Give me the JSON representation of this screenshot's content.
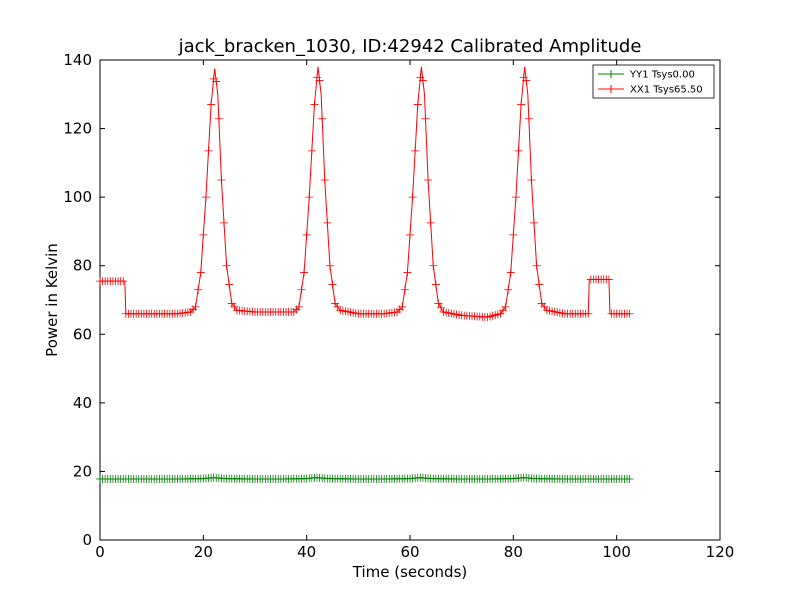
{
  "chart_data": {
    "type": "line",
    "title": "jack_bracken_1030, ID:42942 Calibrated Amplitude",
    "xlabel": "Time (seconds)",
    "ylabel": "Power in Kelvin",
    "xlim": [
      0,
      120
    ],
    "ylim": [
      0,
      140
    ],
    "xticks": [
      "0",
      "20",
      "40",
      "60",
      "80",
      "100",
      "120"
    ],
    "yticks": [
      "0",
      "20",
      "40",
      "60",
      "80",
      "100",
      "120",
      "140"
    ],
    "grid": false,
    "legend_position": "top-right",
    "series": [
      {
        "name": "YY1 Tsys0.00",
        "color": "#008000",
        "x": [
          0,
          5,
          10,
          15,
          20,
          22,
          24,
          30,
          35,
          40,
          42,
          44,
          50,
          55,
          60,
          62,
          64,
          70,
          75,
          80,
          82,
          84,
          90,
          95,
          100,
          102.5
        ],
        "y": [
          17.8,
          17.8,
          17.8,
          17.8,
          17.9,
          18.2,
          17.9,
          17.8,
          17.8,
          17.9,
          18.2,
          17.9,
          17.8,
          17.8,
          17.9,
          18.2,
          17.9,
          17.8,
          17.8,
          17.9,
          18.2,
          17.9,
          17.8,
          17.8,
          17.8,
          17.8
        ]
      },
      {
        "name": "XX1 Tsys65.50",
        "color": "#ff0000",
        "x": [
          0,
          4.8,
          5.0,
          10,
          15,
          17.5,
          18.5,
          19.5,
          20.5,
          21.5,
          22.2,
          22.8,
          23.5,
          24.5,
          25.5,
          26.5,
          30,
          35,
          37.5,
          38.5,
          39.5,
          40.5,
          41.5,
          42.2,
          42.8,
          43.5,
          44.5,
          45.5,
          46.5,
          50,
          55,
          57.5,
          58.5,
          59.5,
          60.5,
          61.5,
          62.2,
          62.8,
          63.5,
          64.5,
          65.5,
          66.5,
          70,
          75,
          77.5,
          78.5,
          79.5,
          80.5,
          81.5,
          82.2,
          82.8,
          83.5,
          84.5,
          85.5,
          86.5,
          90,
          94.5,
          94.7,
          98.5,
          98.7,
          102.5
        ],
        "y": [
          75.5,
          75.5,
          66,
          66,
          66,
          66.5,
          68,
          78,
          100,
          127,
          137.5,
          130,
          105,
          80,
          69,
          67,
          66.5,
          66.5,
          66.5,
          68,
          78,
          100,
          127,
          138,
          130,
          105,
          80,
          69,
          67,
          66,
          66,
          66.5,
          68,
          78,
          100,
          127,
          138,
          130,
          105,
          80,
          69,
          66.5,
          65.5,
          65,
          66,
          68,
          78,
          100,
          127,
          138,
          130,
          105,
          80,
          69,
          67,
          66,
          66,
          76,
          76,
          66,
          66
        ]
      }
    ]
  }
}
